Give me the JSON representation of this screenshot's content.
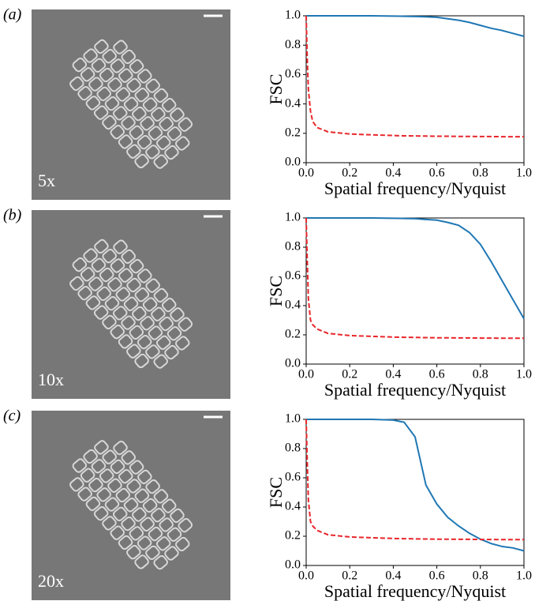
{
  "panels": [
    {
      "label": "(a)",
      "magnification": "5x"
    },
    {
      "label": "(b)",
      "magnification": "10x"
    },
    {
      "label": "(c)",
      "magnification": "20x"
    }
  ],
  "chart_data": [
    {
      "type": "line",
      "x_label": "Spatial frequency/Nyquist",
      "y_label": "FSC",
      "x": [
        0,
        0.005,
        0.01,
        0.02,
        0.03,
        0.05,
        0.1,
        0.2,
        0.3,
        0.4,
        0.45,
        0.5,
        0.55,
        0.6,
        0.65,
        0.7,
        0.75,
        0.8,
        0.85,
        0.9,
        0.95,
        1.0
      ],
      "series": [
        {
          "color": "#1f77b4",
          "style": "solid",
          "values": [
            1,
            1,
            1,
            1,
            1,
            1,
            1,
            1,
            1,
            0.998,
            0.997,
            0.995,
            0.993,
            0.99,
            0.98,
            0.97,
            0.955,
            0.935,
            0.915,
            0.9,
            0.88,
            0.86
          ]
        },
        {
          "color": "#e8262a",
          "style": "dashed",
          "values": [
            1.0,
            0.7,
            0.5,
            0.35,
            0.28,
            0.24,
            0.21,
            0.195,
            0.19,
            0.185,
            0.183,
            0.182,
            0.181,
            0.18,
            0.18,
            0.179,
            0.179,
            0.178,
            0.178,
            0.177,
            0.177,
            0.177
          ]
        }
      ],
      "xlim": [
        0,
        1
      ],
      "ylim": [
        0,
        1
      ],
      "xticks": [
        {
          "value": 0,
          "label": "0.0"
        },
        0.2,
        0.4,
        0.6,
        0.8,
        {
          "value": 1,
          "label": "1.0"
        }
      ],
      "yticks": [
        {
          "value": 0,
          "label": "0.0"
        },
        0.2,
        0.4,
        0.6,
        0.8,
        {
          "value": 1,
          "label": "1.0"
        }
      ]
    },
    {
      "type": "line",
      "x_label": "Spatial frequency/Nyquist",
      "y_label": "FSC",
      "x": [
        0,
        0.005,
        0.01,
        0.02,
        0.03,
        0.05,
        0.1,
        0.2,
        0.3,
        0.4,
        0.45,
        0.5,
        0.55,
        0.6,
        0.65,
        0.7,
        0.75,
        0.8,
        0.85,
        0.9,
        0.95,
        1.0
      ],
      "series": [
        {
          "color": "#1f77b4",
          "style": "solid",
          "values": [
            1,
            1,
            1,
            1,
            1,
            1,
            1,
            1,
            1,
            0.998,
            0.997,
            0.995,
            0.99,
            0.985,
            0.97,
            0.95,
            0.9,
            0.82,
            0.7,
            0.57,
            0.44,
            0.31
          ]
        },
        {
          "color": "#e8262a",
          "style": "dashed",
          "values": [
            1.0,
            0.7,
            0.45,
            0.3,
            0.27,
            0.24,
            0.21,
            0.195,
            0.19,
            0.185,
            0.183,
            0.182,
            0.181,
            0.18,
            0.18,
            0.179,
            0.179,
            0.178,
            0.178,
            0.177,
            0.177,
            0.177
          ]
        }
      ],
      "xlim": [
        0,
        1
      ],
      "ylim": [
        0,
        1
      ],
      "xticks": [
        {
          "value": 0,
          "label": "0.0"
        },
        0.2,
        0.4,
        0.6,
        0.8,
        {
          "value": 1,
          "label": "1.0"
        }
      ],
      "yticks": [
        {
          "value": 0,
          "label": "0.0"
        },
        0.2,
        0.4,
        0.6,
        0.8,
        {
          "value": 1,
          "label": "1.0"
        }
      ]
    },
    {
      "type": "line",
      "x_label": "Spatial frequency/Nyquist",
      "y_label": "FSC",
      "x": [
        0,
        0.005,
        0.01,
        0.02,
        0.03,
        0.05,
        0.1,
        0.2,
        0.3,
        0.4,
        0.45,
        0.5,
        0.55,
        0.6,
        0.65,
        0.7,
        0.75,
        0.8,
        0.85,
        0.9,
        0.95,
        1.0
      ],
      "series": [
        {
          "color": "#1f77b4",
          "style": "solid",
          "values": [
            1,
            1,
            1,
            1,
            1,
            1,
            1,
            1,
            1,
            0.995,
            0.98,
            0.88,
            0.55,
            0.42,
            0.33,
            0.27,
            0.22,
            0.18,
            0.15,
            0.13,
            0.12,
            0.1
          ]
        },
        {
          "color": "#e8262a",
          "style": "dashed",
          "values": [
            1.0,
            0.7,
            0.45,
            0.3,
            0.27,
            0.24,
            0.21,
            0.195,
            0.19,
            0.185,
            0.183,
            0.182,
            0.181,
            0.18,
            0.18,
            0.179,
            0.179,
            0.178,
            0.178,
            0.177,
            0.177,
            0.177
          ]
        }
      ],
      "xlim": [
        0,
        1
      ],
      "ylim": [
        0,
        1
      ],
      "xticks": [
        {
          "value": 0,
          "label": "0.0"
        },
        0.2,
        0.4,
        0.6,
        0.8,
        {
          "value": 1,
          "label": "1.0"
        }
      ],
      "yticks": [
        {
          "value": 0,
          "label": "0.0"
        },
        0.2,
        0.4,
        0.6,
        0.8,
        {
          "value": 1,
          "label": "1.0"
        }
      ]
    }
  ]
}
